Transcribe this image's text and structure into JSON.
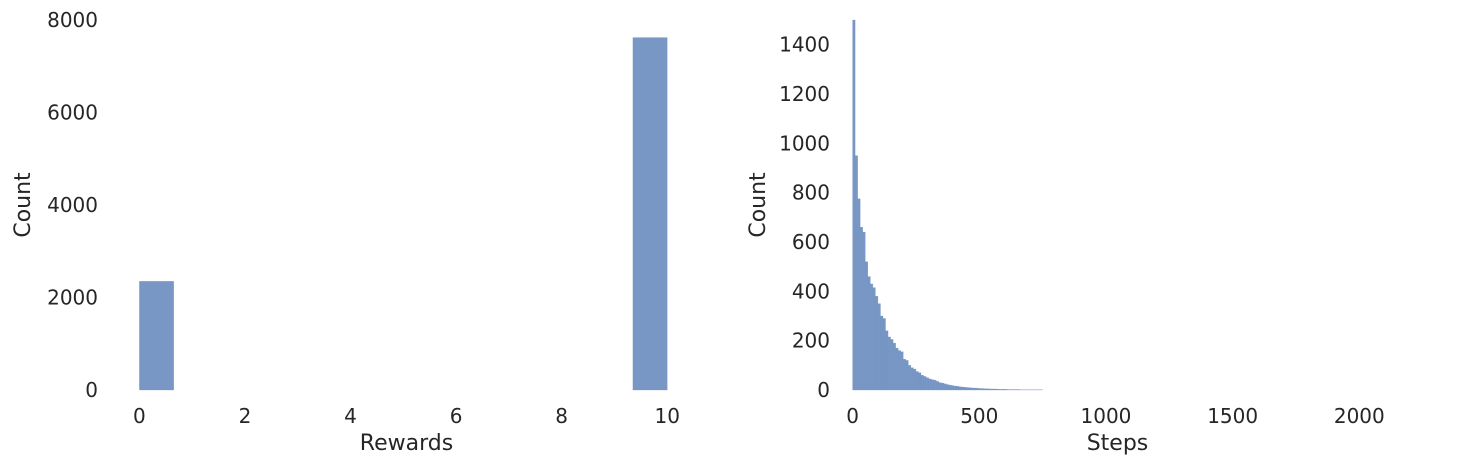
{
  "chart_data": [
    {
      "type": "bar",
      "title": "",
      "xlabel": "Rewards",
      "ylabel": "Count",
      "xlim": [
        -0.5,
        11.0
      ],
      "ylim": [
        0,
        8000
      ],
      "xticks": [
        0,
        2,
        4,
        6,
        8,
        10
      ],
      "yticks": [
        0,
        2000,
        4000,
        6000,
        8000
      ],
      "grid": false,
      "color": "#6c8ebf",
      "bars": [
        {
          "x0": 0.0,
          "x1": 0.65,
          "value": 2350
        },
        {
          "x0": 9.35,
          "x1": 10.0,
          "value": 7620
        }
      ]
    },
    {
      "type": "bar",
      "title": "",
      "xlabel": "Steps",
      "ylabel": "Count",
      "xlim": [
        -30,
        2200
      ],
      "ylim": [
        0,
        1500
      ],
      "xticks": [
        0,
        500,
        1000,
        1500,
        2000
      ],
      "yticks": [
        0,
        200,
        400,
        600,
        800,
        1000,
        1200,
        1400
      ],
      "grid": false,
      "color": "#6c8ebf",
      "bin_start": 0,
      "bin_width": 10,
      "values": [
        1500,
        950,
        775,
        660,
        640,
        520,
        460,
        430,
        415,
        380,
        350,
        300,
        290,
        240,
        215,
        205,
        190,
        170,
        160,
        155,
        125,
        120,
        100,
        90,
        85,
        75,
        70,
        60,
        55,
        50,
        45,
        42,
        40,
        35,
        30,
        28,
        25,
        22,
        20,
        18,
        16,
        15,
        13,
        12,
        11,
        10,
        9,
        8,
        8,
        7,
        6,
        6,
        5,
        5,
        4,
        4,
        4,
        3,
        3,
        3,
        3,
        2,
        2,
        2,
        2,
        2,
        1,
        1,
        1,
        1,
        1,
        1,
        1,
        1,
        1
      ]
    }
  ]
}
